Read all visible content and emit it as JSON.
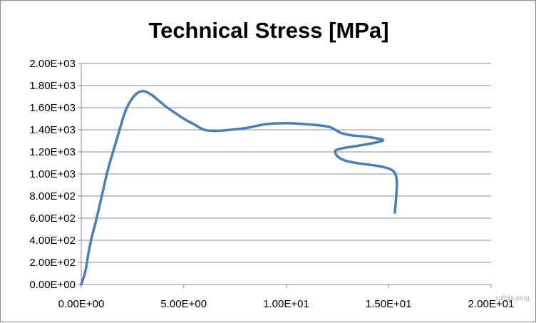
{
  "chart_data": {
    "type": "line",
    "title": "Technical Stress [MPa]",
    "xlabel": "",
    "ylabel": "",
    "xlim": [
      0,
      20
    ],
    "ylim": [
      0,
      2000
    ],
    "x_tick_labels": [
      "0.00E+00",
      "5.00E+00",
      "1.00E+01",
      "1.50E+01",
      "2.00E+01"
    ],
    "y_tick_labels": [
      "0.00E+00",
      "2.00E+02",
      "4.00E+02",
      "6.00E+02",
      "8.00E+02",
      "1.00E+03",
      "1.20E+03",
      "1.40E+03",
      "1.60E+03",
      "1.80E+03",
      "2.00E+03"
    ],
    "grid": true,
    "legend": "none",
    "series": [
      {
        "name": "Technical Stress",
        "color": "#4a7ebb",
        "x": [
          0.0,
          0.2,
          0.35,
          0.5,
          0.7,
          0.9,
          1.1,
          1.3,
          1.6,
          1.9,
          2.2,
          2.6,
          3.0,
          3.4,
          3.8,
          4.2,
          4.6,
          5.0,
          5.5,
          6.0,
          6.5,
          7.0,
          8.0,
          9.0,
          10.0,
          11.0,
          12.0,
          12.3,
          12.7,
          13.2,
          14.0,
          14.7,
          14.5,
          13.5,
          12.8,
          12.4,
          12.5,
          12.9,
          13.6,
          14.4,
          14.9,
          15.2,
          15.35,
          15.4,
          15.35,
          15.3
        ],
        "y": [
          0,
          120,
          280,
          420,
          560,
          720,
          880,
          1040,
          1230,
          1420,
          1590,
          1710,
          1750,
          1720,
          1660,
          1600,
          1550,
          1500,
          1450,
          1400,
          1390,
          1395,
          1415,
          1450,
          1460,
          1450,
          1430,
          1410,
          1370,
          1350,
          1335,
          1310,
          1290,
          1255,
          1235,
          1210,
          1160,
          1120,
          1095,
          1075,
          1055,
          1030,
          990,
          900,
          750,
          650
        ]
      }
    ]
  },
  "watermark": "ruthbujong"
}
